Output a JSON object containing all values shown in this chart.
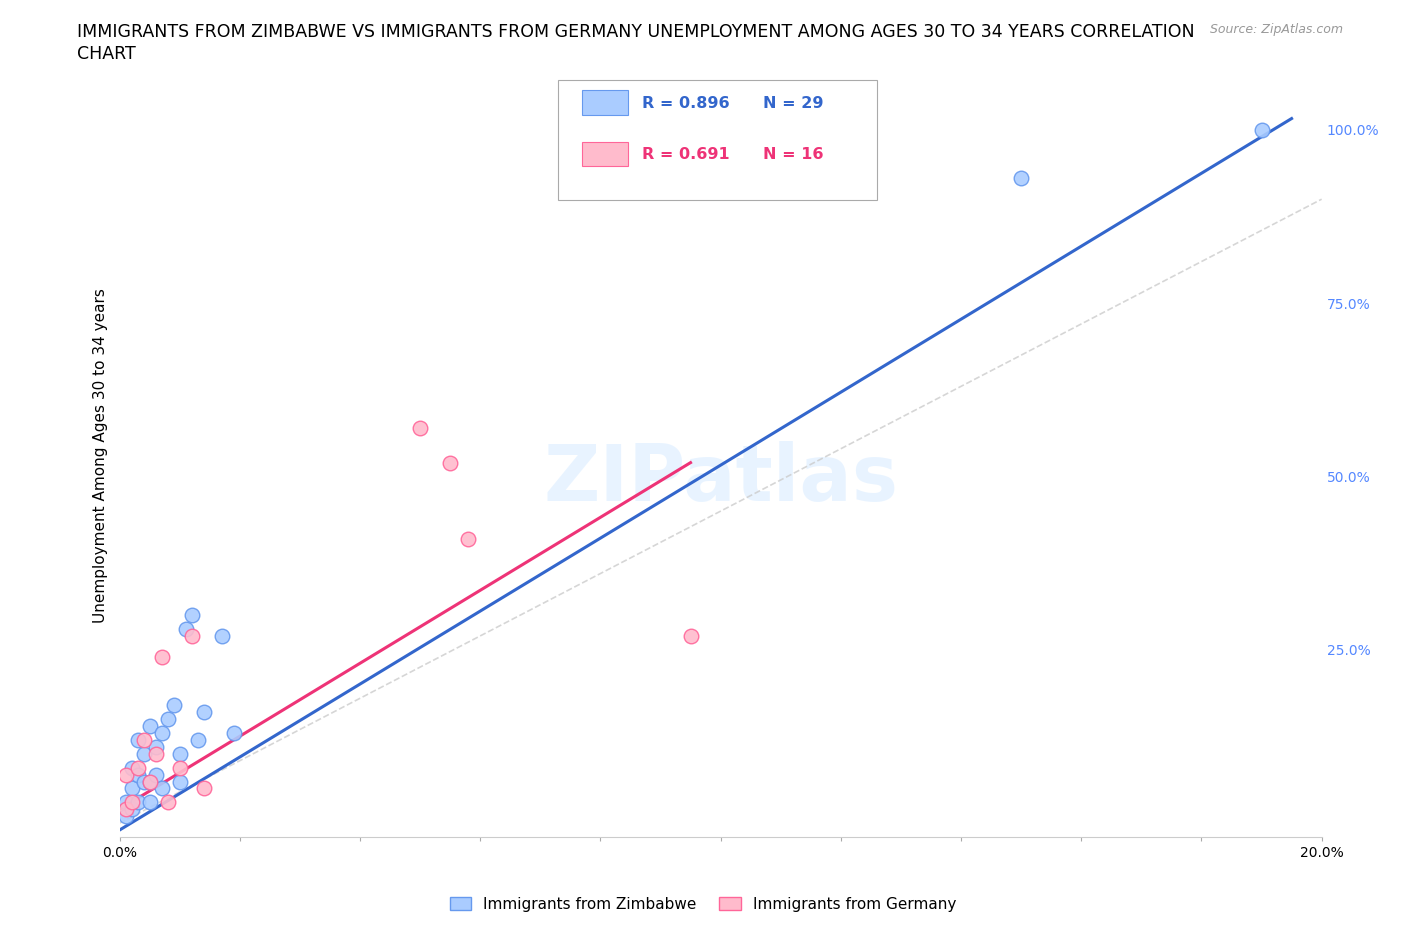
{
  "title_line1": "IMMIGRANTS FROM ZIMBABWE VS IMMIGRANTS FROM GERMANY UNEMPLOYMENT AMONG AGES 30 TO 34 YEARS CORRELATION",
  "title_line2": "CHART",
  "source_text": "Source: ZipAtlas.com",
  "ylabel": "Unemployment Among Ages 30 to 34 years",
  "right_ytick_vals": [
    0.0,
    0.25,
    0.5,
    0.75,
    1.0
  ],
  "right_yticklabels": [
    "",
    "25.0%",
    "50.0%",
    "75.0%",
    "100.0%"
  ],
  "xticks": [
    0.0,
    0.02,
    0.04,
    0.06,
    0.08,
    0.1,
    0.12,
    0.14,
    0.16,
    0.18,
    0.2
  ],
  "xticklabels": [
    "0.0%",
    "",
    "",
    "",
    "",
    "",
    "",
    "",
    "",
    "",
    "20.0%"
  ],
  "xlim": [
    0.0,
    0.2
  ],
  "ylim": [
    -0.02,
    1.08
  ],
  "zimbabwe_color": "#aaccff",
  "germany_color": "#ffbbcc",
  "zimbabwe_edge": "#6699ee",
  "germany_edge": "#ff6699",
  "trend_zimbabwe_color": "#3366cc",
  "trend_germany_color": "#ee3377",
  "ref_line_color": "#cccccc",
  "legend_R_zimbabwe": "R = 0.896",
  "legend_N_zimbabwe": "N = 29",
  "legend_R_germany": "R = 0.691",
  "legend_N_germany": "N = 16",
  "watermark": "ZIPatlas",
  "zimbabwe_x": [
    0.001,
    0.001,
    0.002,
    0.002,
    0.002,
    0.003,
    0.003,
    0.003,
    0.004,
    0.004,
    0.005,
    0.005,
    0.005,
    0.006,
    0.006,
    0.007,
    0.007,
    0.008,
    0.009,
    0.01,
    0.01,
    0.011,
    0.012,
    0.013,
    0.014,
    0.017,
    0.019,
    0.15,
    0.19
  ],
  "zimbabwe_y": [
    0.01,
    0.03,
    0.02,
    0.05,
    0.08,
    0.03,
    0.07,
    0.12,
    0.06,
    0.1,
    0.03,
    0.06,
    0.14,
    0.07,
    0.11,
    0.05,
    0.13,
    0.15,
    0.17,
    0.06,
    0.1,
    0.28,
    0.3,
    0.12,
    0.16,
    0.27,
    0.13,
    0.93,
    1.0
  ],
  "germany_x": [
    0.001,
    0.001,
    0.002,
    0.003,
    0.004,
    0.005,
    0.006,
    0.007,
    0.008,
    0.01,
    0.012,
    0.014,
    0.05,
    0.055,
    0.058,
    0.095
  ],
  "germany_y": [
    0.02,
    0.07,
    0.03,
    0.08,
    0.12,
    0.06,
    0.1,
    0.24,
    0.03,
    0.08,
    0.27,
    0.05,
    0.57,
    0.52,
    0.41,
    0.27
  ],
  "background_color": "#ffffff",
  "grid_color": "#ddddee",
  "title_fontsize": 12.5,
  "axis_label_fontsize": 11,
  "tick_fontsize": 10,
  "right_tick_color": "#5588ff",
  "bottom_legend_labels": [
    "Immigrants from Zimbabwe",
    "Immigrants from Germany"
  ]
}
